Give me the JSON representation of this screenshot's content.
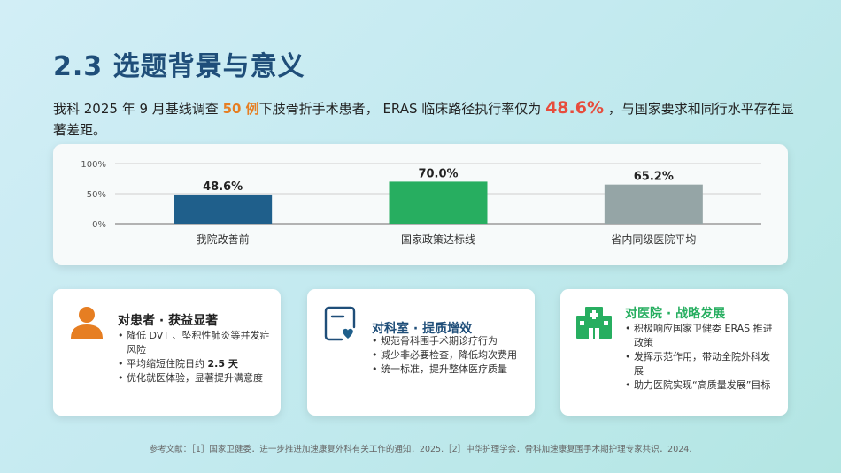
{
  "title": "2.3  选题背景与意义",
  "intro": {
    "part1": "我科 2025 年 9 月基线调查 ",
    "cases": "50 例",
    "part2": "下肢骨折手术患者， ERAS 临床路径执行率仅为 ",
    "rate": "48.6%",
    "part3": " ，与国家要求和同行水平存在显著差距。"
  },
  "chart_data": {
    "type": "bar",
    "categories": [
      "我院改善前",
      "国家政策达标线",
      "省内同级医院平均"
    ],
    "values": [
      48.6,
      70.0,
      65.2
    ],
    "value_labels": [
      "48.6%",
      "70.0%",
      "65.2%"
    ],
    "colors": [
      "#1f5f8b",
      "#27ae60",
      "#95a5a6"
    ],
    "yticks": [
      0,
      50,
      100
    ],
    "ytick_labels": [
      "0%",
      "50%",
      "100%"
    ],
    "ylim": [
      0,
      100
    ],
    "grid": true
  },
  "cards": [
    {
      "title": "对患者 · 获益显著",
      "title_color": "#e67e22",
      "icon": "patient-icon",
      "items": [
        {
          "text": "降低 DVT 、坠积性肺炎等并发症风险"
        },
        {
          "text": "平均缩短住院日约 ",
          "bold": "2.5 天"
        },
        {
          "text": "优化就医体验，显著提升满意度"
        }
      ]
    },
    {
      "title": "对科室 · 提质增效",
      "title_color": "#1f4e79",
      "icon": "clipboard-heart-icon",
      "items": [
        {
          "text": "规范骨科围手术期诊疗行为"
        },
        {
          "text": "减少非必要检查，降低均次费用"
        },
        {
          "text": "统一标准，提升整体医疗质量"
        }
      ]
    },
    {
      "title": "对医院 · 战略发展",
      "title_color": "#27ae60",
      "icon": "hospital-icon",
      "items": [
        {
          "text": "积极响应国家卫健委 ERAS 推进政策"
        },
        {
          "text": "发挥示范作用，带动全院外科发展"
        },
        {
          "text": "助力医院实现“高质量发展”目标"
        }
      ]
    }
  ],
  "references": "参考文献：［1］国家卫健委．进一步推进加速康复外科有关工作的通知．2025.［2］中华护理学会．骨科加速康复围手术期护理专家共识．2024."
}
